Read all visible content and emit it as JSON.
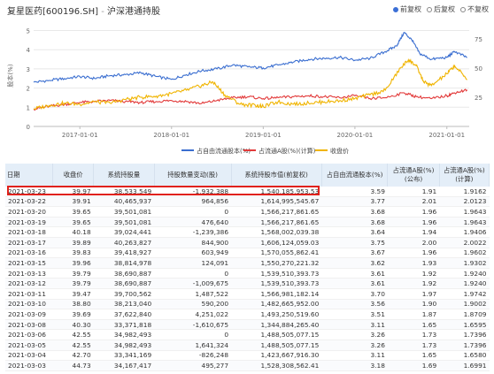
{
  "header": {
    "stock": "复星医药[600196.SH]",
    "sep": " - ",
    "section": "沪深港通持股",
    "options": [
      {
        "label": "前复权",
        "checked": true
      },
      {
        "label": "后复权",
        "checked": false
      },
      {
        "label": "不复权",
        "checked": false
      }
    ]
  },
  "chart_data": {
    "type": "line",
    "ylabel_left": "股本(%)",
    "yticks_left": [
      "0",
      "1",
      "2",
      "3",
      "4",
      "5"
    ],
    "yticks_right": [
      "25",
      "50",
      "75"
    ],
    "ylim_left": [
      0,
      5.3
    ],
    "ylim_right": [
      0,
      87
    ],
    "xticks": [
      "2017-01-01",
      "2018-01-01",
      "2019-01-01",
      "2020-01-01",
      "2021-01-01"
    ],
    "xrange": [
      "2016-07-01",
      "2021-03-31"
    ],
    "grid": true,
    "legend_position": "bottom",
    "series": [
      {
        "name": "占自由流通股本(%)",
        "color": "#3a6ed0",
        "axis": "left",
        "points": [
          [
            "2016-07-01",
            2.3
          ],
          [
            "2016-09-01",
            2.4
          ],
          [
            "2016-11-01",
            2.5
          ],
          [
            "2017-01-01",
            2.6
          ],
          [
            "2017-03-01",
            2.5
          ],
          [
            "2017-05-01",
            2.65
          ],
          [
            "2017-07-01",
            2.7
          ],
          [
            "2017-09-01",
            2.8
          ],
          [
            "2017-11-01",
            2.6
          ],
          [
            "2018-01-01",
            2.45
          ],
          [
            "2018-03-01",
            2.7
          ],
          [
            "2018-05-01",
            2.9
          ],
          [
            "2018-07-01",
            3.0
          ],
          [
            "2018-09-01",
            3.2
          ],
          [
            "2018-11-01",
            3.1
          ],
          [
            "2019-01-01",
            3.05
          ],
          [
            "2019-03-01",
            3.2
          ],
          [
            "2019-05-01",
            3.35
          ],
          [
            "2019-07-01",
            3.5
          ],
          [
            "2019-09-01",
            3.55
          ],
          [
            "2019-11-01",
            3.6
          ],
          [
            "2020-01-01",
            3.45
          ],
          [
            "2020-03-01",
            3.55
          ],
          [
            "2020-05-01",
            3.9
          ],
          [
            "2020-06-15",
            4.2
          ],
          [
            "2020-07-15",
            4.9
          ],
          [
            "2020-08-15",
            4.5
          ],
          [
            "2020-09-15",
            3.8
          ],
          [
            "2020-11-01",
            3.5
          ],
          [
            "2021-01-01",
            3.6
          ],
          [
            "2021-02-01",
            3.9
          ],
          [
            "2021-03-23",
            3.59
          ]
        ]
      },
      {
        "name": "占流通A股(%)(计算)",
        "color": "#e23a3a",
        "axis": "left",
        "points": [
          [
            "2016-07-01",
            0.9
          ],
          [
            "2016-09-01",
            1.05
          ],
          [
            "2016-11-01",
            1.15
          ],
          [
            "2017-01-01",
            1.25
          ],
          [
            "2017-03-01",
            1.3
          ],
          [
            "2017-05-01",
            1.35
          ],
          [
            "2017-07-01",
            1.3
          ],
          [
            "2017-09-01",
            1.25
          ],
          [
            "2017-11-01",
            1.3
          ],
          [
            "2018-01-01",
            1.35
          ],
          [
            "2018-03-01",
            1.3
          ],
          [
            "2018-05-01",
            1.2
          ],
          [
            "2018-07-01",
            1.35
          ],
          [
            "2018-09-01",
            1.5
          ],
          [
            "2018-11-01",
            1.55
          ],
          [
            "2019-01-01",
            1.45
          ],
          [
            "2019-03-01",
            1.5
          ],
          [
            "2019-05-01",
            1.55
          ],
          [
            "2019-07-01",
            1.6
          ],
          [
            "2019-09-01",
            1.55
          ],
          [
            "2019-11-01",
            1.5
          ],
          [
            "2020-01-01",
            1.6
          ],
          [
            "2020-03-01",
            1.45
          ],
          [
            "2020-05-01",
            1.5
          ],
          [
            "2020-07-15",
            1.75
          ],
          [
            "2020-09-01",
            1.55
          ],
          [
            "2020-11-01",
            1.45
          ],
          [
            "2021-01-01",
            1.6
          ],
          [
            "2021-02-01",
            1.75
          ],
          [
            "2021-03-23",
            1.91
          ]
        ]
      },
      {
        "name": "收盘价",
        "color": "#f0b400",
        "axis": "right",
        "points": [
          [
            "2016-07-01",
            15
          ],
          [
            "2016-09-01",
            18
          ],
          [
            "2016-11-01",
            20
          ],
          [
            "2017-01-01",
            19
          ],
          [
            "2017-03-01",
            21
          ],
          [
            "2017-05-01",
            20
          ],
          [
            "2017-07-01",
            23
          ],
          [
            "2017-09-01",
            25
          ],
          [
            "2017-11-01",
            26
          ],
          [
            "2018-01-01",
            28
          ],
          [
            "2018-03-01",
            31
          ],
          [
            "2018-05-01",
            35
          ],
          [
            "2018-06-15",
            38
          ],
          [
            "2018-08-01",
            27
          ],
          [
            "2018-10-01",
            19
          ],
          [
            "2018-12-01",
            18
          ],
          [
            "2019-01-01",
            17
          ],
          [
            "2019-03-01",
            21
          ],
          [
            "2019-05-01",
            19
          ],
          [
            "2019-07-01",
            20
          ],
          [
            "2019-09-01",
            21
          ],
          [
            "2019-11-01",
            22
          ],
          [
            "2020-01-01",
            24
          ],
          [
            "2020-03-01",
            27
          ],
          [
            "2020-05-01",
            31
          ],
          [
            "2020-07-01",
            50
          ],
          [
            "2020-08-01",
            57
          ],
          [
            "2020-09-01",
            52
          ],
          [
            "2020-10-01",
            38
          ],
          [
            "2020-11-01",
            35
          ],
          [
            "2021-01-01",
            45
          ],
          [
            "2021-02-01",
            52
          ],
          [
            "2021-03-23",
            40
          ]
        ]
      }
    ]
  },
  "table": {
    "headers": [
      "日期",
      "收盘价",
      "系统持股量",
      "持股数量变动(股)",
      "系统持股市值(前复权)",
      "占自由流通股本(%)",
      "占流通A股(%)(公布)",
      "占流通A股(%)(计算)"
    ],
    "rows": [
      [
        "2021-03-23",
        "39.97",
        "38,533,549",
        "-1,932,388",
        "1,540,185,953.53",
        "3.59",
        "1.91",
        "1.9162"
      ],
      [
        "2021-03-22",
        "39.91",
        "40,465,937",
        "964,856",
        "1,614,995,545.67",
        "3.77",
        "2.01",
        "2.0123"
      ],
      [
        "2021-03-20",
        "39.65",
        "39,501,081",
        "0",
        "1,566,217,861.65",
        "3.68",
        "1.96",
        "1.9643"
      ],
      [
        "2021-03-19",
        "39.65",
        "39,501,081",
        "476,640",
        "1,566,217,861.65",
        "3.68",
        "1.96",
        "1.9643"
      ],
      [
        "2021-03-18",
        "40.18",
        "39,024,441",
        "-1,239,386",
        "1,568,002,039.38",
        "3.64",
        "1.94",
        "1.9406"
      ],
      [
        "2021-03-17",
        "39.89",
        "40,263,827",
        "844,900",
        "1,606,124,059.03",
        "3.75",
        "2.00",
        "2.0022"
      ],
      [
        "2021-03-16",
        "39.83",
        "39,418,927",
        "603,949",
        "1,570,055,862.41",
        "3.67",
        "1.96",
        "1.9602"
      ],
      [
        "2021-03-15",
        "39.96",
        "38,814,978",
        "124,091",
        "1,550,270,221.32",
        "3.62",
        "1.93",
        "1.9302"
      ],
      [
        "2021-03-13",
        "39.79",
        "38,690,887",
        "0",
        "1,539,510,393.73",
        "3.61",
        "1.92",
        "1.9240"
      ],
      [
        "2021-03-12",
        "39.79",
        "38,690,887",
        "-1,009,675",
        "1,539,510,393.73",
        "3.61",
        "1.92",
        "1.9240"
      ],
      [
        "2021-03-11",
        "39.47",
        "39,700,562",
        "1,487,522",
        "1,566,981,182.14",
        "3.70",
        "1.97",
        "1.9742"
      ],
      [
        "2021-03-10",
        "38.80",
        "38,213,040",
        "590,200",
        "1,482,665,952.00",
        "3.56",
        "1.90",
        "1.9002"
      ],
      [
        "2021-03-09",
        "39.69",
        "37,622,840",
        "4,251,022",
        "1,493,250,519.60",
        "3.51",
        "1.87",
        "1.8709"
      ],
      [
        "2021-03-08",
        "40.30",
        "33,371,818",
        "-1,610,675",
        "1,344,884,265.40",
        "3.11",
        "1.65",
        "1.6595"
      ],
      [
        "2021-03-06",
        "42.55",
        "34,982,493",
        "0",
        "1,488,505,077.15",
        "3.26",
        "1.73",
        "1.7396"
      ],
      [
        "2021-03-05",
        "42.55",
        "34,982,493",
        "1,641,324",
        "1,488,505,077.15",
        "3.26",
        "1.73",
        "1.7396"
      ],
      [
        "2021-03-04",
        "42.70",
        "33,341,169",
        "-826,248",
        "1,423,667,916.30",
        "3.11",
        "1.65",
        "1.6580"
      ],
      [
        "2021-03-03",
        "44.73",
        "34,167,417",
        "495,277",
        "1,528,308,562.41",
        "3.18",
        "1.69",
        "1.6991"
      ]
    ]
  }
}
